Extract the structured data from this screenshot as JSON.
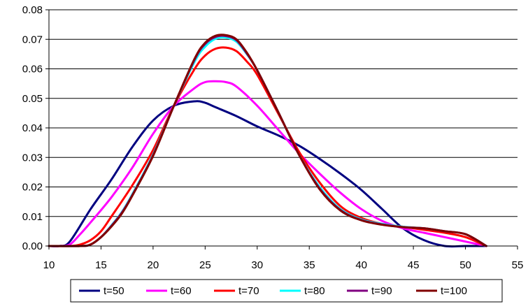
{
  "chart_data": {
    "type": "line",
    "title": "",
    "xlabel": "",
    "ylabel": "",
    "xlim": [
      10,
      55
    ],
    "ylim": [
      0,
      0.08
    ],
    "x_ticks": [
      "10",
      "15",
      "20",
      "25",
      "30",
      "35",
      "40",
      "45",
      "50",
      "55"
    ],
    "y_ticks": [
      "0.00",
      "0.01",
      "0.02",
      "0.03",
      "0.04",
      "0.05",
      "0.06",
      "0.07",
      "0.08"
    ],
    "grid": "horizontal",
    "legend_position": "bottom",
    "series": [
      {
        "name": "t=50",
        "color": "#000080",
        "x": [
          10,
          11,
          12,
          14,
          16,
          18,
          20,
          22,
          24,
          25,
          26,
          28,
          30,
          32,
          34,
          36,
          38,
          40,
          42,
          44,
          46,
          48,
          50,
          52
        ],
        "y": [
          0.0,
          0.0,
          0.0015,
          0.0125,
          0.0225,
          0.0335,
          0.0425,
          0.0475,
          0.049,
          0.0485,
          0.047,
          0.044,
          0.0405,
          0.0375,
          0.034,
          0.0295,
          0.0245,
          0.019,
          0.0125,
          0.006,
          0.002,
          0.0,
          0.0,
          0.0
        ]
      },
      {
        "name": "t=60",
        "color": "#ff00ff",
        "x": [
          10,
          11,
          12,
          13,
          14,
          16,
          18,
          20,
          22,
          24,
          25,
          26,
          27,
          28,
          30,
          32,
          34,
          36,
          38,
          40,
          42,
          44,
          46,
          48,
          50,
          52
        ],
        "y": [
          0.0,
          0.0,
          0.0005,
          0.004,
          0.008,
          0.0165,
          0.0265,
          0.038,
          0.0475,
          0.0535,
          0.0555,
          0.0558,
          0.0555,
          0.054,
          0.0475,
          0.0395,
          0.0315,
          0.0245,
          0.018,
          0.0125,
          0.0085,
          0.006,
          0.0045,
          0.003,
          0.0015,
          0.0
        ]
      },
      {
        "name": "t=70",
        "color": "#ff0000",
        "x": [
          10,
          12,
          13,
          14,
          15,
          16,
          18,
          20,
          22,
          24,
          25,
          26,
          27,
          28,
          29,
          30,
          32,
          34,
          36,
          38,
          40,
          42,
          44,
          46,
          48,
          50,
          52
        ],
        "y": [
          0.0,
          0.0,
          0.0005,
          0.002,
          0.005,
          0.01,
          0.0205,
          0.0325,
          0.0475,
          0.06,
          0.0645,
          0.0668,
          0.0672,
          0.066,
          0.0625,
          0.058,
          0.045,
          0.032,
          0.0215,
          0.0135,
          0.0095,
          0.0075,
          0.0065,
          0.0055,
          0.0045,
          0.003,
          0.0
        ]
      },
      {
        "name": "t=80",
        "color": "#00ffff",
        "x": [
          10,
          13,
          14,
          15,
          16,
          17,
          18,
          20,
          22,
          24,
          25,
          26,
          27,
          28,
          29,
          30,
          32,
          34,
          36,
          38,
          40,
          42,
          44,
          46,
          48,
          50,
          52
        ],
        "y": [
          0.0,
          0.0,
          0.0005,
          0.003,
          0.007,
          0.0115,
          0.0175,
          0.031,
          0.0475,
          0.0625,
          0.0675,
          0.0702,
          0.0706,
          0.0692,
          0.065,
          0.0595,
          0.0455,
          0.031,
          0.02,
          0.0125,
          0.009,
          0.0075,
          0.0065,
          0.006,
          0.005,
          0.004,
          0.0
        ]
      },
      {
        "name": "t=90",
        "color": "#800080",
        "x": [
          10,
          13,
          14,
          15,
          16,
          17,
          18,
          20,
          22,
          24,
          25,
          26,
          27,
          28,
          29,
          30,
          32,
          34,
          36,
          38,
          40,
          42,
          44,
          46,
          48,
          50,
          52
        ],
        "y": [
          0.0,
          0.0,
          0.0005,
          0.003,
          0.0068,
          0.0113,
          0.0172,
          0.0307,
          0.0475,
          0.0632,
          0.0684,
          0.0708,
          0.0711,
          0.0697,
          0.0652,
          0.0595,
          0.0455,
          0.031,
          0.0195,
          0.0122,
          0.0088,
          0.0073,
          0.0064,
          0.006,
          0.005,
          0.004,
          0.0
        ]
      },
      {
        "name": "t=100",
        "color": "#800000",
        "x": [
          10,
          13,
          14,
          15,
          16,
          17,
          18,
          20,
          22,
          24,
          25,
          26,
          27,
          28,
          29,
          30,
          32,
          34,
          36,
          38,
          40,
          42,
          44,
          46,
          48,
          50,
          52
        ],
        "y": [
          0.0,
          0.0,
          0.0005,
          0.003,
          0.0066,
          0.011,
          0.017,
          0.0305,
          0.0475,
          0.0635,
          0.0688,
          0.0712,
          0.0714,
          0.07,
          0.0655,
          0.0595,
          0.0455,
          0.031,
          0.0192,
          0.012,
          0.0087,
          0.0072,
          0.0064,
          0.006,
          0.005,
          0.004,
          0.0
        ]
      }
    ]
  }
}
